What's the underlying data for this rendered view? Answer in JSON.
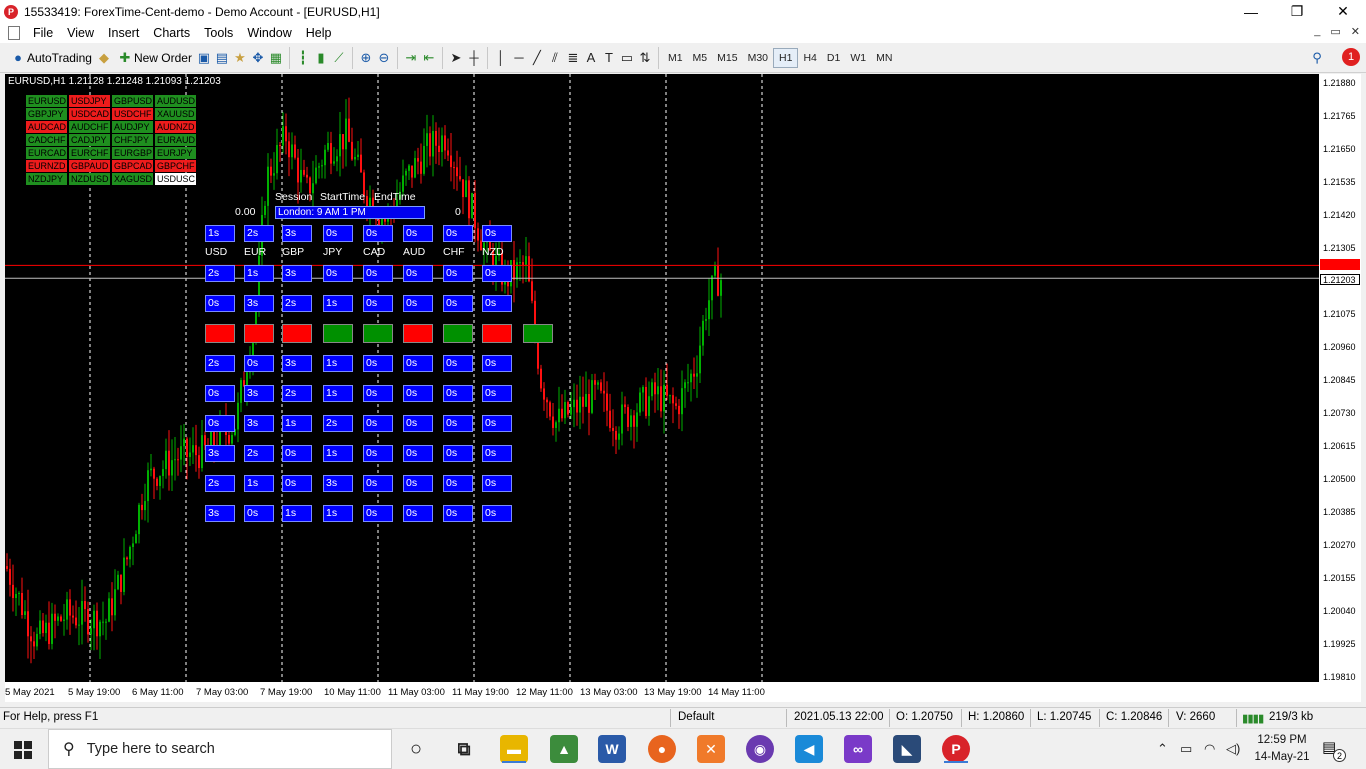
{
  "window": {
    "title": "15533419: ForexTime-Cent-demo - Demo Account - [EURUSD,H1]",
    "app_icon_glyph": "P",
    "controls": [
      "—",
      "❐",
      "✕"
    ]
  },
  "menu": {
    "items": [
      "File",
      "View",
      "Insert",
      "Charts",
      "Tools",
      "Window",
      "Help"
    ],
    "mdi_controls": [
      "_",
      "▭",
      "✕"
    ]
  },
  "toolbar": {
    "autotrading_label": "AutoTrading",
    "new_order_label": "New Order",
    "timeframes": [
      "M1",
      "M5",
      "M15",
      "M30",
      "H1",
      "H4",
      "D1",
      "W1",
      "MN"
    ],
    "active_timeframe": "H1",
    "notification_count": "1"
  },
  "chart": {
    "header": "EURUSD,H1  1.21128 1.21248 1.21093 1.21203",
    "symbols": [
      {
        "name": "EURUSD",
        "state": "g"
      },
      {
        "name": "USDJPY",
        "state": "r"
      },
      {
        "name": "GBPUSD",
        "state": "g"
      },
      {
        "name": "AUDUSD",
        "state": "g"
      },
      {
        "name": "GBPJPY",
        "state": "g"
      },
      {
        "name": "USDCAD",
        "state": "r"
      },
      {
        "name": "USDCHF",
        "state": "r"
      },
      {
        "name": "XAUUSD",
        "state": "g"
      },
      {
        "name": "AUDCAD",
        "state": "r"
      },
      {
        "name": "AUDCHF",
        "state": "g"
      },
      {
        "name": "AUDJPY",
        "state": "g"
      },
      {
        "name": "AUDNZD",
        "state": "r"
      },
      {
        "name": "CADCHF",
        "state": "g"
      },
      {
        "name": "CADJPY",
        "state": "g"
      },
      {
        "name": "CHFJPY",
        "state": "g"
      },
      {
        "name": "EURAUD",
        "state": "g"
      },
      {
        "name": "EURCAD",
        "state": "g"
      },
      {
        "name": "EURCHF",
        "state": "g"
      },
      {
        "name": "EURGBP",
        "state": "g"
      },
      {
        "name": "EURJPY",
        "state": "g"
      },
      {
        "name": "EURNZD",
        "state": "r"
      },
      {
        "name": "GBPAUD",
        "state": "r"
      },
      {
        "name": "GBPCAD",
        "state": "r"
      },
      {
        "name": "GBPCHF",
        "state": "r"
      },
      {
        "name": "NZDJPY",
        "state": "g"
      },
      {
        "name": "NZDUSD",
        "state": "g"
      },
      {
        "name": "XAGUSD",
        "state": "g"
      },
      {
        "name": "USDUSC",
        "state": "w"
      }
    ],
    "session": {
      "headers": [
        "Session",
        "StartTime",
        "EndTime"
      ],
      "row": "London: 9 AM     1 PM",
      "left_value": "0.00",
      "right_value": "0"
    },
    "currencies": [
      "USD",
      "EUR",
      "GBP",
      "JPY",
      "CAD",
      "AUD",
      "CHF",
      "NZD"
    ],
    "top_row": [
      "1s",
      "2s",
      "3s",
      "0s",
      "0s",
      "0s",
      "0s",
      "0s"
    ],
    "rows": [
      [
        "2s",
        "1s",
        "3s",
        "0s",
        "0s",
        "0s",
        "0s",
        "0s"
      ],
      [
        "0s",
        "3s",
        "2s",
        "1s",
        "0s",
        "0s",
        "0s",
        "0s"
      ],
      [
        "2s",
        "0s",
        "3s",
        "1s",
        "0s",
        "0s",
        "0s",
        "0s"
      ],
      [
        "0s",
        "3s",
        "2s",
        "1s",
        "0s",
        "0s",
        "0s",
        "0s"
      ],
      [
        "0s",
        "3s",
        "1s",
        "2s",
        "0s",
        "0s",
        "0s",
        "0s"
      ],
      [
        "3s",
        "2s",
        "0s",
        "1s",
        "0s",
        "0s",
        "0s",
        "0s"
      ],
      [
        "2s",
        "1s",
        "0s",
        "3s",
        "0s",
        "0s",
        "0s",
        "0s"
      ],
      [
        "3s",
        "0s",
        "1s",
        "1s",
        "0s",
        "0s",
        "0s",
        "0s"
      ]
    ],
    "indicators": [
      "red",
      "red",
      "red",
      "green",
      "green",
      "red",
      "green",
      "red",
      "green"
    ],
    "price_ticks": [
      "1.21880",
      "1.21765",
      "1.21650",
      "1.21535",
      "1.21420",
      "1.21305",
      "1.21075",
      "1.20960",
      "1.20845",
      "1.20730",
      "1.20615",
      "1.20500",
      "1.20385",
      "1.20270",
      "1.20155",
      "1.20040",
      "1.19925",
      "1.19810"
    ],
    "current_price": "1.21203",
    "red_price": "1.21248",
    "time_ticks": [
      "5 May 2021",
      "5 May 19:00",
      "6 May 11:00",
      "7 May 03:00",
      "7 May 19:00",
      "10 May 11:00",
      "11 May 03:00",
      "11 May 19:00",
      "12 May 11:00",
      "13 May 03:00",
      "13 May 19:00",
      "14 May 11:00"
    ]
  },
  "status": {
    "help": "For Help, press F1",
    "profile": "Default",
    "datetime": "2021.05.13 22:00",
    "open": "O: 1.20750",
    "high": "H: 1.20860",
    "low": "L: 1.20745",
    "close": "C: 1.20846",
    "volume": "V: 2660",
    "traffic": "219/3 kb"
  },
  "taskbar": {
    "search_placeholder": "Type here to search",
    "time": "12:59 PM",
    "date": "14-May-21",
    "notification_count": "2"
  },
  "colors": {
    "chart_bg": "#000000",
    "bull": "#00b000",
    "bear": "#ff1010",
    "cell": "#0000ff",
    "price_line": "#ff0000"
  }
}
